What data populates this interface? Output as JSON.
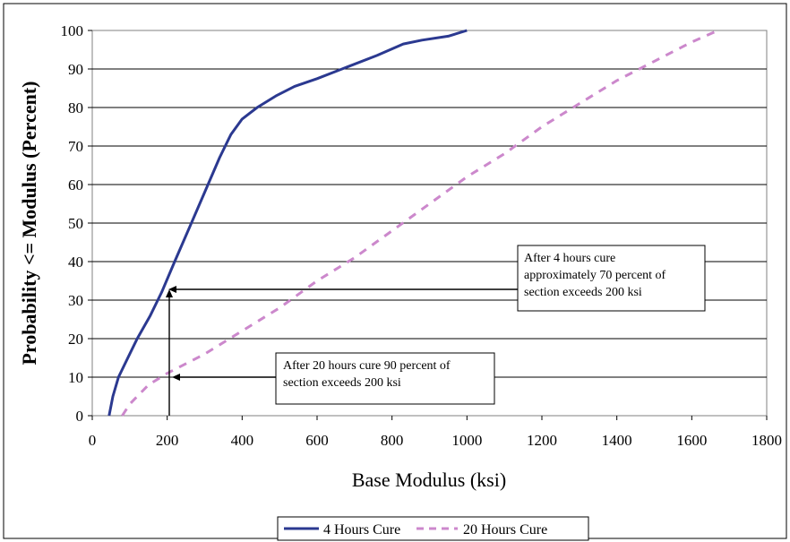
{
  "chart_data": {
    "type": "line",
    "title": "",
    "xlabel": "Base Modulus (ksi)",
    "ylabel": "Probability <= Modulus (Percent)",
    "xlim": [
      0,
      1800
    ],
    "ylim": [
      0,
      100
    ],
    "xticks": [
      0,
      200,
      400,
      600,
      800,
      1000,
      1200,
      1400,
      1600,
      1800
    ],
    "yticks": [
      0,
      10,
      20,
      30,
      40,
      50,
      60,
      70,
      80,
      90,
      100
    ],
    "grid": "horizontal",
    "legend_position": "bottom",
    "series": [
      {
        "name": "4 Hours Cure",
        "color": "#2b3990",
        "dash": "solid",
        "points": [
          [
            45,
            0
          ],
          [
            55,
            5
          ],
          [
            70,
            10
          ],
          [
            95,
            15
          ],
          [
            120,
            20
          ],
          [
            155,
            26
          ],
          [
            185,
            32
          ],
          [
            220,
            40
          ],
          [
            260,
            49
          ],
          [
            300,
            58
          ],
          [
            340,
            67
          ],
          [
            370,
            73
          ],
          [
            400,
            77
          ],
          [
            440,
            80
          ],
          [
            490,
            83
          ],
          [
            540,
            85.5
          ],
          [
            600,
            87.5
          ],
          [
            680,
            90.5
          ],
          [
            760,
            93.5
          ],
          [
            830,
            96.5
          ],
          [
            880,
            97.5
          ],
          [
            950,
            98.5
          ],
          [
            1000,
            100
          ]
        ]
      },
      {
        "name": "20 Hours Cure",
        "color": "#cc88cc",
        "dash": "dashed",
        "points": [
          [
            80,
            0
          ],
          [
            100,
            3
          ],
          [
            150,
            8
          ],
          [
            200,
            11
          ],
          [
            300,
            16
          ],
          [
            400,
            22
          ],
          [
            500,
            28
          ],
          [
            600,
            35
          ],
          [
            700,
            41
          ],
          [
            800,
            48
          ],
          [
            900,
            55
          ],
          [
            1000,
            62
          ],
          [
            1100,
            68
          ],
          [
            1200,
            75
          ],
          [
            1300,
            81
          ],
          [
            1400,
            87
          ],
          [
            1500,
            92
          ],
          [
            1600,
            97
          ],
          [
            1670,
            100
          ]
        ]
      }
    ],
    "annotations": [
      {
        "id": "annot-4h",
        "lines": [
          "After 4 hours cure",
          "approximately 70 percent of",
          "section exceeds 200 ksi"
        ]
      },
      {
        "id": "annot-20h",
        "lines": [
          "After 20 hours cure 90 percent of",
          "section exceeds 200 ksi"
        ]
      }
    ]
  }
}
